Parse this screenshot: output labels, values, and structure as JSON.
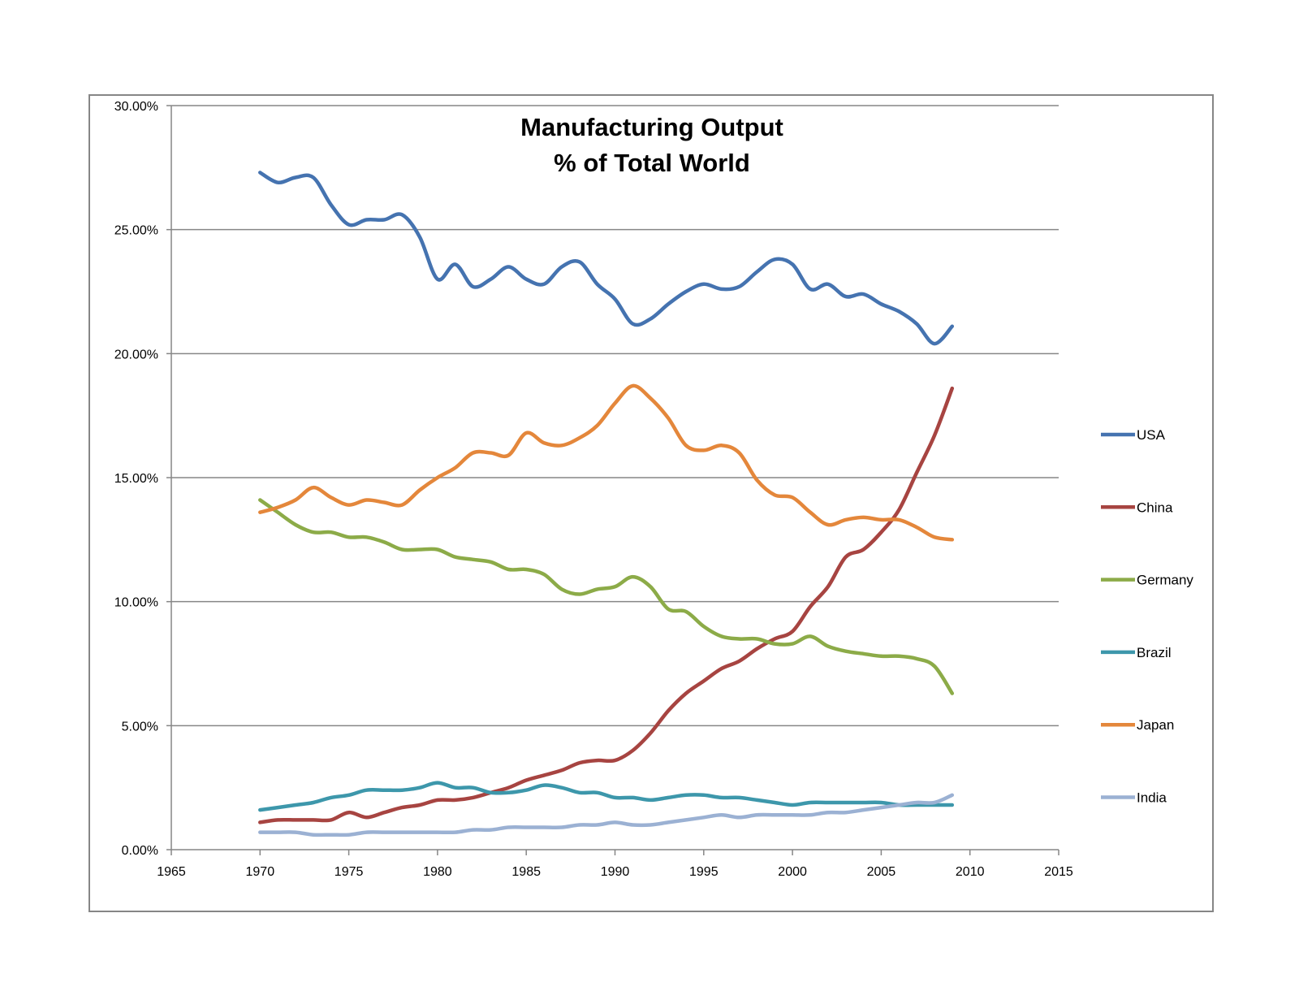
{
  "chart_data": {
    "type": "line",
    "title_lines": [
      "Manufacturing Output",
      "% of Total World"
    ],
    "xlabel": "",
    "ylabel": "",
    "x_ticks": [
      "1965",
      "1970",
      "1975",
      "1980",
      "1985",
      "1990",
      "1995",
      "2000",
      "2005",
      "2010",
      "2015"
    ],
    "y_ticks": [
      "0.00%",
      "5.00%",
      "10.00%",
      "15.00%",
      "20.00%",
      "25.00%",
      "30.00%"
    ],
    "xlim": [
      1965,
      2015
    ],
    "ylim": [
      0,
      30
    ],
    "grid": true,
    "legend": "right",
    "x": [
      1970,
      1971,
      1972,
      1973,
      1974,
      1975,
      1976,
      1977,
      1978,
      1979,
      1980,
      1981,
      1982,
      1983,
      1984,
      1985,
      1986,
      1987,
      1988,
      1989,
      1990,
      1991,
      1992,
      1993,
      1994,
      1995,
      1996,
      1997,
      1998,
      1999,
      2000,
      2001,
      2002,
      2003,
      2004,
      2005,
      2006,
      2007,
      2008,
      2009
    ],
    "series": [
      {
        "name": "USA",
        "color": "#4573b0",
        "values": [
          27.3,
          26.9,
          27.1,
          27.1,
          26.0,
          25.2,
          25.4,
          25.4,
          25.6,
          24.7,
          23.0,
          23.6,
          22.7,
          23.0,
          23.5,
          23.0,
          22.8,
          23.5,
          23.7,
          22.8,
          22.2,
          21.2,
          21.4,
          22.0,
          22.5,
          22.8,
          22.6,
          22.7,
          23.3,
          23.8,
          23.6,
          22.6,
          22.8,
          22.3,
          22.4,
          22.0,
          21.7,
          21.2,
          20.4,
          21.1
        ]
      },
      {
        "name": "China",
        "color": "#a74441",
        "values": [
          1.1,
          1.2,
          1.2,
          1.2,
          1.2,
          1.5,
          1.3,
          1.5,
          1.7,
          1.8,
          2.0,
          2.0,
          2.1,
          2.3,
          2.5,
          2.8,
          3.0,
          3.2,
          3.5,
          3.6,
          3.6,
          4.0,
          4.7,
          5.6,
          6.3,
          6.8,
          7.3,
          7.6,
          8.1,
          8.5,
          8.8,
          9.8,
          10.6,
          11.8,
          12.1,
          12.8,
          13.7,
          15.2,
          16.7,
          18.6
        ]
      },
      {
        "name": "Germany",
        "color": "#8cab48",
        "values": [
          14.1,
          13.6,
          13.1,
          12.8,
          12.8,
          12.6,
          12.6,
          12.4,
          12.1,
          12.1,
          12.1,
          11.8,
          11.7,
          11.6,
          11.3,
          11.3,
          11.1,
          10.5,
          10.3,
          10.5,
          10.6,
          11.0,
          10.6,
          9.7,
          9.6,
          9.0,
          8.6,
          8.5,
          8.5,
          8.3,
          8.3,
          8.6,
          8.2,
          8.0,
          7.9,
          7.8,
          7.8,
          7.7,
          7.4,
          6.3
        ]
      },
      {
        "name": "Brazil",
        "color": "#3d97ab",
        "values": [
          1.6,
          1.7,
          1.8,
          1.9,
          2.1,
          2.2,
          2.4,
          2.4,
          2.4,
          2.5,
          2.7,
          2.5,
          2.5,
          2.3,
          2.3,
          2.4,
          2.6,
          2.5,
          2.3,
          2.3,
          2.1,
          2.1,
          2.0,
          2.1,
          2.2,
          2.2,
          2.1,
          2.1,
          2.0,
          1.9,
          1.8,
          1.9,
          1.9,
          1.9,
          1.9,
          1.9,
          1.8,
          1.8,
          1.8,
          1.8
        ]
      },
      {
        "name": "Japan",
        "color": "#e4873b",
        "values": [
          13.6,
          13.8,
          14.1,
          14.6,
          14.2,
          13.9,
          14.1,
          14.0,
          13.9,
          14.5,
          15.0,
          15.4,
          16.0,
          16.0,
          15.9,
          16.8,
          16.4,
          16.3,
          16.6,
          17.1,
          18.0,
          18.7,
          18.2,
          17.4,
          16.3,
          16.1,
          16.3,
          16.0,
          14.9,
          14.3,
          14.2,
          13.6,
          13.1,
          13.3,
          13.4,
          13.3,
          13.3,
          13.0,
          12.6,
          12.5
        ]
      },
      {
        "name": "India",
        "color": "#9bb1d3",
        "values": [
          0.7,
          0.7,
          0.7,
          0.6,
          0.6,
          0.6,
          0.7,
          0.7,
          0.7,
          0.7,
          0.7,
          0.7,
          0.8,
          0.8,
          0.9,
          0.9,
          0.9,
          0.9,
          1.0,
          1.0,
          1.1,
          1.0,
          1.0,
          1.1,
          1.2,
          1.3,
          1.4,
          1.3,
          1.4,
          1.4,
          1.4,
          1.4,
          1.5,
          1.5,
          1.6,
          1.7,
          1.8,
          1.9,
          1.9,
          2.2
        ]
      }
    ]
  }
}
